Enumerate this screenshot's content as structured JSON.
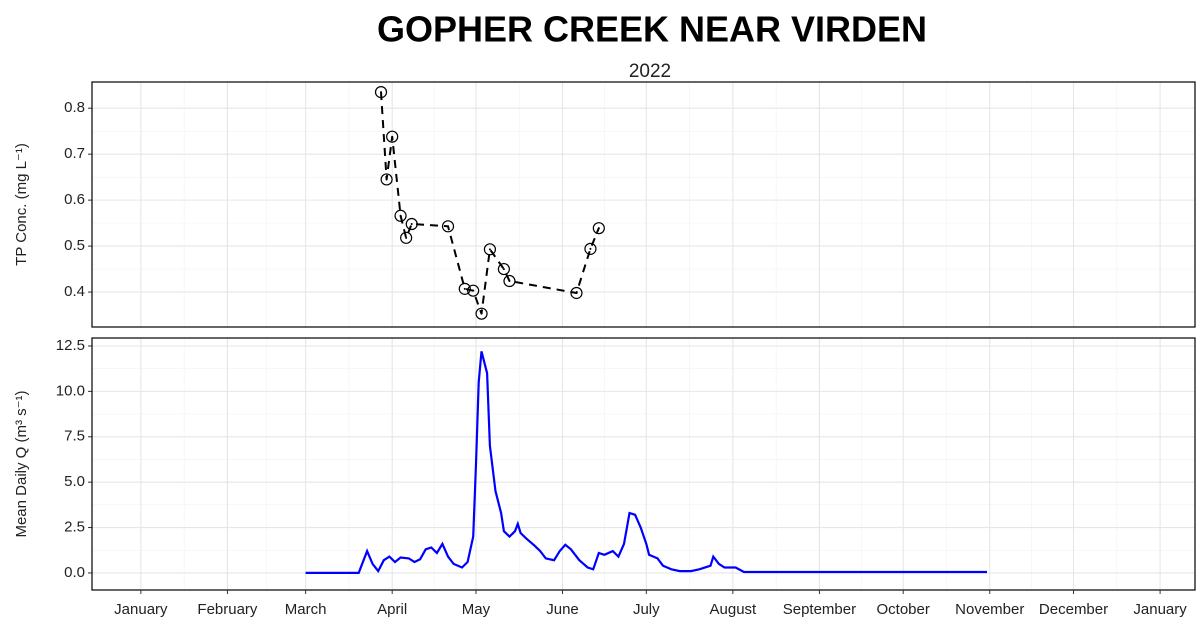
{
  "chart_data": [
    {
      "type": "line",
      "title": "GOPHER CREEK NEAR VIRDEN",
      "subtitle": "2022",
      "ylabel": "TP Conc. (mg L⁻¹)",
      "x": [
        86,
        88,
        90,
        93,
        95,
        97,
        110,
        116,
        119,
        122,
        125,
        130,
        132,
        156,
        161,
        164
      ],
      "values": [
        0.835,
        0.645,
        0.738,
        0.566,
        0.518,
        0.548,
        0.543,
        0.407,
        0.403,
        0.353,
        0.493,
        0.45,
        0.424,
        0.398,
        0.494,
        0.539
      ],
      "color": "#000000",
      "linestyle": "dashed",
      "marker": "circle-dot",
      "ylim": [
        0.324,
        0.857
      ],
      "yticks": [
        0.4,
        0.5,
        0.6,
        0.7,
        0.8
      ],
      "grid": true
    },
    {
      "type": "line",
      "ylabel": "Mean Daily Q (m³ s⁻¹)",
      "x": [
        59,
        78,
        81,
        83,
        85,
        87,
        89,
        91,
        93,
        96,
        98,
        100,
        102,
        104,
        106,
        108,
        110,
        112,
        115,
        117,
        119,
        120,
        121,
        122,
        124,
        125,
        127,
        129,
        130,
        132,
        134,
        135,
        136,
        138,
        141,
        143,
        145,
        148,
        150,
        152,
        154,
        157,
        160,
        162,
        164,
        166,
        169,
        171,
        173,
        175,
        177,
        179,
        181,
        182,
        185,
        187,
        190,
        193,
        197,
        200,
        204,
        205,
        207,
        209,
        213,
        216,
        303
      ],
      "values": [
        0.0,
        0.0,
        1.2,
        0.5,
        0.1,
        0.7,
        0.9,
        0.6,
        0.85,
        0.8,
        0.6,
        0.75,
        1.3,
        1.4,
        1.1,
        1.6,
        0.9,
        0.5,
        0.3,
        0.6,
        2.0,
        6.0,
        10.5,
        12.2,
        11.0,
        7.0,
        4.5,
        3.3,
        2.3,
        2.0,
        2.3,
        2.7,
        2.2,
        1.9,
        1.5,
        1.2,
        0.8,
        0.7,
        1.2,
        1.55,
        1.3,
        0.7,
        0.3,
        0.2,
        1.1,
        1.0,
        1.2,
        0.9,
        1.6,
        3.3,
        3.2,
        2.5,
        1.6,
        1.0,
        0.8,
        0.4,
        0.2,
        0.1,
        0.1,
        0.2,
        0.4,
        0.9,
        0.5,
        0.3,
        0.3,
        0.05,
        0.05
      ],
      "color": "#0000ff",
      "linestyle": "solid",
      "ylim": [
        -0.94,
        12.94
      ],
      "yticks": [
        {
          "value": 0,
          "label": "0.0"
        },
        2.5,
        {
          "value": 5,
          "label": "5.0"
        },
        7.5,
        {
          "value": 10,
          "label": "10.0"
        },
        12.5
      ],
      "xlim": [
        -17.5,
        377.5
      ],
      "xticks": [
        {
          "value": 0,
          "label": "January"
        },
        {
          "value": 31,
          "label": "February"
        },
        {
          "value": 59,
          "label": "March"
        },
        {
          "value": 90,
          "label": "April"
        },
        {
          "value": 120,
          "label": "May"
        },
        {
          "value": 151,
          "label": "June"
        },
        {
          "value": 181,
          "label": "July"
        },
        {
          "value": 212,
          "label": "August"
        },
        {
          "value": 243,
          "label": "September"
        },
        {
          "value": 273,
          "label": "October"
        },
        {
          "value": 304,
          "label": "November"
        },
        {
          "value": 334,
          "label": "December"
        },
        {
          "value": 365,
          "label": "January"
        }
      ],
      "grid": true
    }
  ]
}
